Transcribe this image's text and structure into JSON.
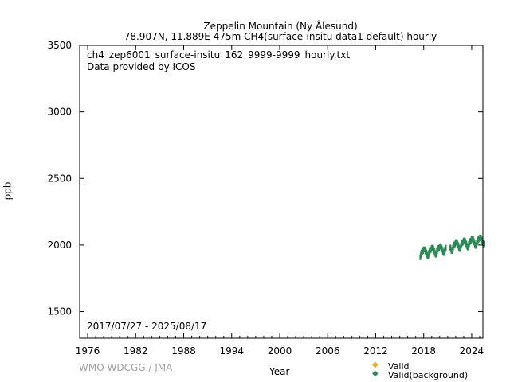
{
  "chart_data": {
    "type": "scatter",
    "title": "Zeppelin Mountain (Ny Ålesund)",
    "subtitle": "78.907N, 11.889E 475m    CH4(surface-insitu data1 default) hourly",
    "file_label": "ch4_zep6001_surface-insitu_162_9999-9999_hourly.txt",
    "provider": "Data provided by ICOS",
    "period": "2017/07/27 - 2025/08/17",
    "xlabel": "Year",
    "ylabel": "ppb",
    "xlim": [
      1975,
      2025.4
    ],
    "ylim": [
      1300,
      3500
    ],
    "xticks": [
      1976,
      1982,
      1988,
      1994,
      2000,
      2006,
      2012,
      2018,
      2024
    ],
    "yticks": [
      1500,
      2000,
      2500,
      3000,
      3500
    ],
    "grid": false,
    "legend_position": "bottom-right",
    "legend": [
      {
        "label": "Valid",
        "color": "#f5a623"
      },
      {
        "label": "Valid(background)",
        "color": "#2e8b57"
      }
    ],
    "series_note_spread_ppb": 22,
    "series": [
      {
        "name": "Valid(background)",
        "color": "#2e8b57",
        "monthly": [
          {
            "year": 2017,
            "start_month": 8,
            "values": [
              1909,
              1929,
              1944,
              1952,
              1954
            ]
          },
          {
            "year": 2018,
            "start_month": 1,
            "values": [
              1966,
              1968,
              1964,
              1951,
              1941,
              1926,
              1916,
              1921,
              1941,
              1956,
              1964,
              1966
            ]
          },
          {
            "year": 2019,
            "start_month": 1,
            "values": [
              1978,
              1980,
              1976,
              1963,
              1953,
              1938,
              1928,
              1933,
              1953,
              1968,
              1976,
              1978
            ]
          },
          {
            "year": 2020,
            "start_month": 1,
            "values": [
              1990,
              1992,
              1988,
              1975,
              1965,
              1950,
              1940,
              1945,
              1965,
              1980
            ]
          },
          {
            "year": 2021,
            "start_month": 5,
            "values": [
              1981,
              1966,
              1956,
              1961,
              1981,
              1996,
              2004,
              2006
            ]
          },
          {
            "year": 2022,
            "start_month": 1,
            "values": [
              2020,
              2022,
              2018,
              2005,
              1995,
              1980,
              1970,
              1975,
              1995,
              2010,
              2018,
              2020
            ]
          },
          {
            "year": 2023,
            "start_month": 1,
            "values": [
              2032,
              2034,
              2030,
              2017,
              2007,
              1992,
              1982,
              1987,
              2007,
              2022,
              2030,
              2032
            ]
          },
          {
            "year": 2024,
            "start_month": 1,
            "values": [
              2044,
              2046,
              2042,
              2029,
              2019,
              2004,
              1994,
              1999,
              2019,
              2034,
              2042,
              2044
            ]
          },
          {
            "year": 2025,
            "start_month": 1,
            "values": [
              2054,
              2056,
              2052,
              2039,
              2029,
              2014,
              2004,
              2009
            ]
          }
        ]
      }
    ]
  },
  "footer": {
    "credit": "WMO WDCGG / JMA"
  }
}
